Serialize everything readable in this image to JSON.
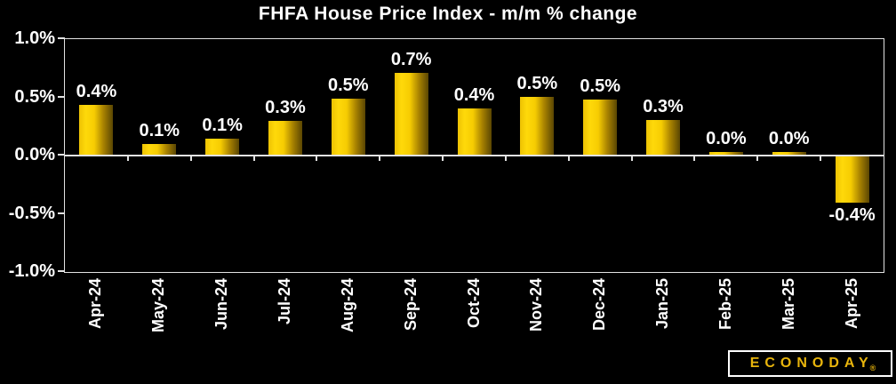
{
  "title": "FHFA House Price Index - m/m % change",
  "chart_data": {
    "type": "bar",
    "title": "FHFA House Price Index - m/m % change",
    "categories": [
      "Apr-24",
      "May-24",
      "Jun-24",
      "Jul-24",
      "Aug-24",
      "Sep-24",
      "Oct-24",
      "Nov-24",
      "Dec-24",
      "Jan-25",
      "Feb-25",
      "Mar-25",
      "Apr-25"
    ],
    "values": [
      0.4,
      0.1,
      0.1,
      0.3,
      0.5,
      0.7,
      0.4,
      0.5,
      0.5,
      0.3,
      0.0,
      0.0,
      -0.4
    ],
    "render_values": [
      0.43,
      0.09,
      0.14,
      0.29,
      0.48,
      0.7,
      0.4,
      0.5,
      0.47,
      0.3,
      0.02,
      0.02,
      -0.4
    ],
    "bar_labels": [
      "0.4%",
      "0.1%",
      "0.1%",
      "0.3%",
      "0.5%",
      "0.7%",
      "0.4%",
      "0.5%",
      "0.5%",
      "0.3%",
      "0.0%",
      "0.0%",
      "-0.4%"
    ],
    "xlabel": "",
    "ylabel": "",
    "ylim": [
      -1.0,
      1.0
    ],
    "yticks": [
      {
        "value": 1.0,
        "label": "1.0%"
      },
      {
        "value": 0.5,
        "label": "0.5%"
      },
      {
        "value": 0.0,
        "label": "0.0%"
      },
      {
        "value": -0.5,
        "label": "-0.5%"
      },
      {
        "value": -1.0,
        "label": "-1.0%"
      }
    ],
    "grid": "off",
    "legend": "none"
  },
  "branding": {
    "logo_text": "ECONODAY",
    "reg_mark": "®"
  },
  "colors": {
    "background": "#000000",
    "text": "#ffffff",
    "axis": "#e2e2e2",
    "logo_gold": "#e9b50c",
    "bar_gradient": [
      "#edc203",
      "#ffd90a",
      "#f6cc02",
      "#a88201",
      "#5a4602"
    ]
  }
}
